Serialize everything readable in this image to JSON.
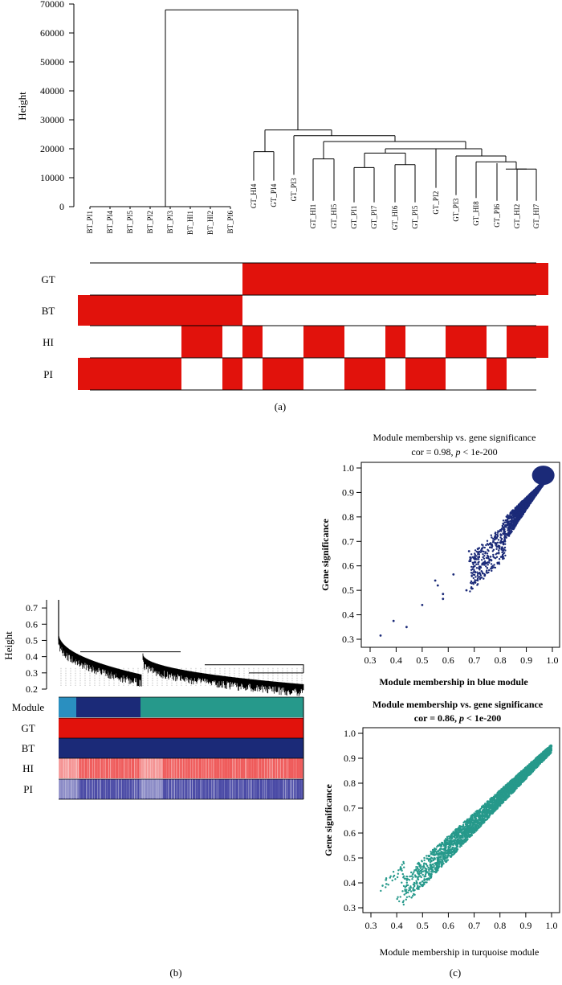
{
  "panel_a": {
    "caption": "(a)",
    "chart_data": {
      "type": "dendrogram",
      "ylabel": "Height",
      "ylim": [
        0,
        70000
      ],
      "yticks": [
        "0",
        "10000",
        "20000",
        "30000",
        "40000",
        "50000",
        "60000",
        "70000"
      ],
      "leaves_bt": [
        "BT_PI1",
        "BT_PI4",
        "BT_PI5",
        "BT_PI2",
        "BT_PI3",
        "BT_HI1",
        "BT_HI2",
        "BT_PI6"
      ],
      "leaves_gt": [
        "GT_HI4",
        "GT_PI4",
        "GT_PI3",
        "GT_HI1",
        "GT_HI5",
        "GT_PI1",
        "GT_PI7",
        "GT_HI6",
        "GT_PI5",
        "GT_PI2",
        "GT_PI3",
        "GT_HI8",
        "GT_PI6",
        "GT_HI2",
        "GT_HI7"
      ],
      "trait_rows": [
        "GT",
        "BT",
        "HI",
        "PI"
      ],
      "colors": {
        "present": "#e1120c",
        "absent": "#ffffff"
      }
    }
  },
  "panel_b": {
    "caption": "(b)",
    "chart_data": {
      "type": "dendrogram",
      "ylabel": "Height",
      "ylim": [
        0.2,
        0.75
      ],
      "yticks": [
        "0.2",
        "0.3",
        "0.4",
        "0.5",
        "0.6",
        "0.7"
      ],
      "row_labels": [
        "Module",
        "GT",
        "BT",
        "HI",
        "PI"
      ],
      "colors": {
        "turquoise": "#26998b",
        "blue": "#1b2a78",
        "red": "#e1120c",
        "lightblue": "#2a8fc0"
      }
    }
  },
  "panel_c": {
    "caption": "(c)",
    "top": {
      "chart_data": {
        "type": "scatter",
        "title": "Module membership vs. gene significance",
        "cor_prefix": "cor = 0.98, ",
        "p_symbol": "p",
        "p_suffix": " < 1e-200",
        "xlabel": "Module membership in blue module",
        "ylabel": "Gene significance",
        "xlim": [
          0.3,
          1.0
        ],
        "ylim": [
          0.3,
          1.0
        ],
        "xticks": [
          "0.3",
          "0.4",
          "0.5",
          "0.6",
          "0.7",
          "0.8",
          "0.9",
          "1.0"
        ],
        "yticks": [
          "0.3",
          "0.4",
          "0.5",
          "0.6",
          "0.7",
          "0.8",
          "0.9",
          "1.0"
        ],
        "color": "#1b2a78",
        "outliers": [
          [
            0.34,
            0.315
          ],
          [
            0.39,
            0.375
          ],
          [
            0.44,
            0.35
          ],
          [
            0.5,
            0.44
          ],
          [
            0.55,
            0.54
          ],
          [
            0.56,
            0.52
          ],
          [
            0.58,
            0.485
          ],
          [
            0.58,
            0.465
          ],
          [
            0.62,
            0.565
          ],
          [
            0.67,
            0.5
          ],
          [
            0.68,
            0.66
          ],
          [
            0.7,
            0.63
          ],
          [
            0.72,
            0.59
          ],
          [
            0.73,
            0.67
          ],
          [
            0.74,
            0.56
          ],
          [
            0.76,
            0.69
          ],
          [
            0.78,
            0.72
          ],
          [
            0.79,
            0.61
          ]
        ]
      }
    },
    "bottom": {
      "chart_data": {
        "type": "scatter",
        "title": "Module membership vs. gene significance",
        "cor_prefix": "cor = 0.86, ",
        "p_symbol": "p",
        "p_suffix": " < 1e-200",
        "xlabel": "Module membership in turquoise module",
        "ylabel": "Gene significance",
        "xlim": [
          0.3,
          1.0
        ],
        "ylim": [
          0.3,
          1.0
        ],
        "xticks": [
          "0.3",
          "0.4",
          "0.5",
          "0.6",
          "0.7",
          "0.8",
          "0.9",
          "1.0"
        ],
        "yticks": [
          "0.3",
          "0.4",
          "0.5",
          "0.6",
          "0.7",
          "0.8",
          "0.9",
          "1.0"
        ],
        "color": "#26998b"
      }
    }
  }
}
